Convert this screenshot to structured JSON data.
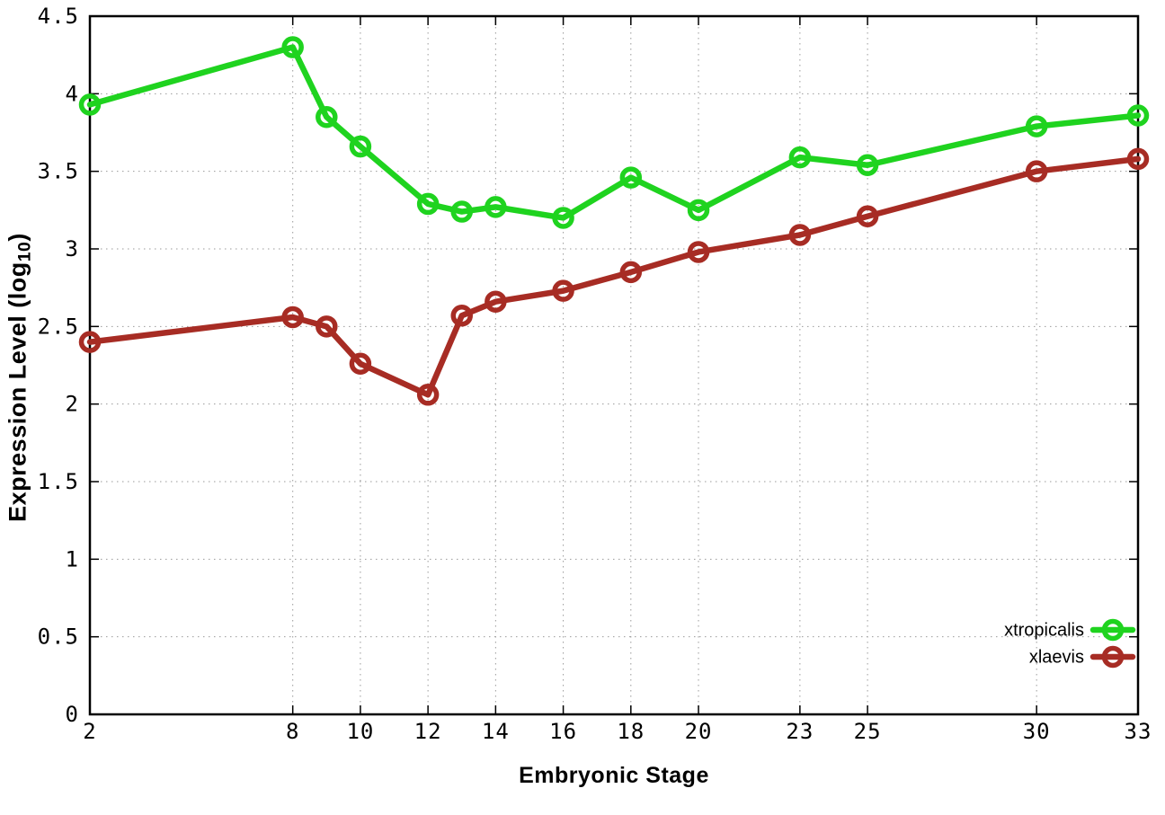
{
  "figure": {
    "background_color": "#ffffff",
    "axis_color": "#000000",
    "grid_color": "#9a9a9a"
  },
  "chart_data": {
    "type": "line",
    "title": "",
    "xlabel": "Embryonic Stage",
    "ylabel": "Expression Level (log10)",
    "ylabel_main": "Expression Level (log",
    "ylabel_sub": "10",
    "ylabel_end": ")",
    "x": [
      2,
      8,
      9,
      10,
      12,
      13,
      14,
      16,
      18,
      20,
      23,
      25,
      30,
      33
    ],
    "series": [
      {
        "name": "xtropicalis",
        "color": "#1FD31F",
        "values": [
          3.93,
          4.3,
          3.85,
          3.66,
          3.29,
          3.24,
          3.27,
          3.2,
          3.46,
          3.25,
          3.59,
          3.54,
          3.79,
          3.86
        ]
      },
      {
        "name": "xlaevis",
        "color": "#A72C24",
        "values": [
          2.4,
          2.56,
          2.5,
          2.26,
          2.06,
          2.57,
          2.66,
          2.73,
          2.85,
          2.98,
          3.09,
          3.21,
          3.5,
          3.58
        ]
      }
    ],
    "xlim": [
      2,
      33
    ],
    "ylim": [
      0,
      4.5
    ],
    "xticks": [
      2,
      8,
      10,
      12,
      14,
      16,
      18,
      20,
      23,
      25,
      30,
      33
    ],
    "yticks": [
      0,
      0.5,
      1,
      1.5,
      2,
      2.5,
      3,
      3.5,
      4,
      4.5
    ],
    "ytick_labels": [
      "0",
      "0.5",
      "1",
      "1.5",
      "2",
      "2.5",
      "3",
      "3.5",
      "4",
      "4.5"
    ],
    "grid": true,
    "grid_style": "dotted",
    "legend_position": "bottom-right",
    "legend_entries": [
      "xtropicalis",
      "xlaevis"
    ]
  }
}
